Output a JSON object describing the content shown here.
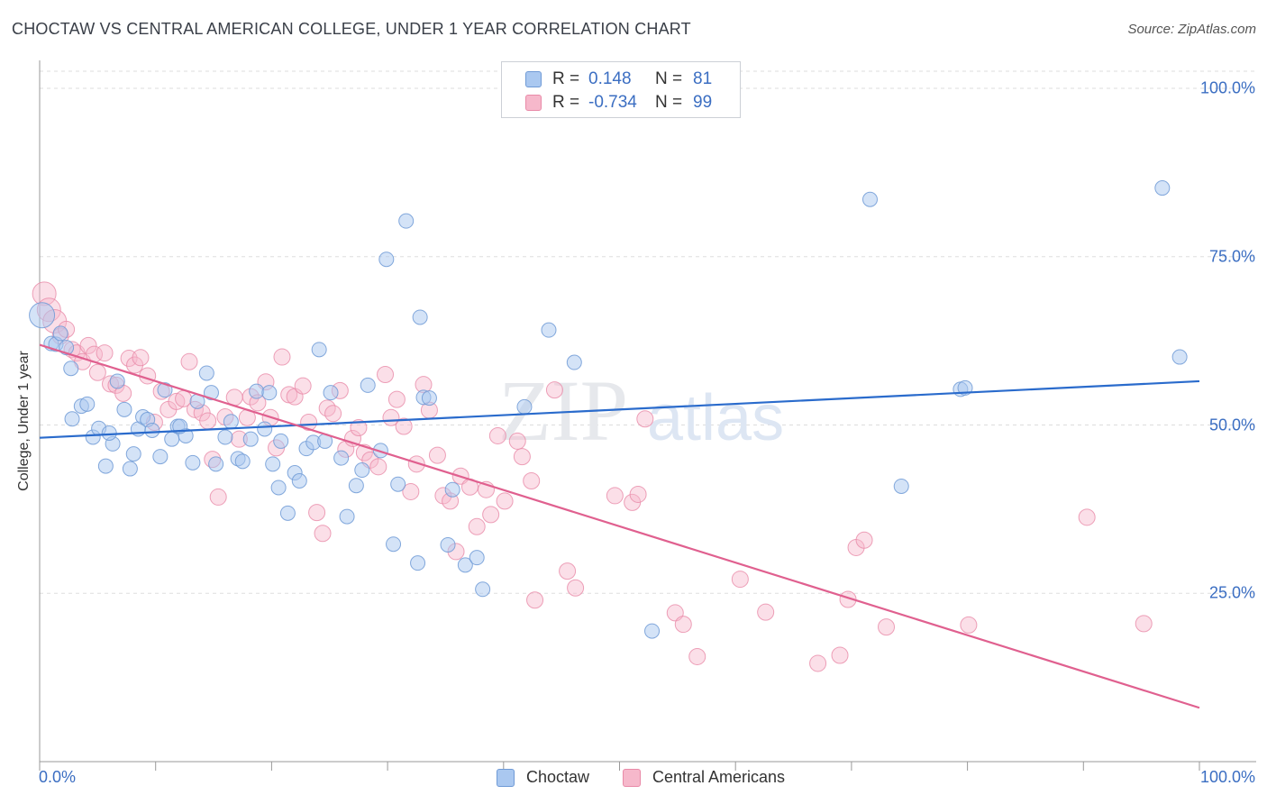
{
  "title": "CHOCTAW VS CENTRAL AMERICAN COLLEGE, UNDER 1 YEAR CORRELATION CHART",
  "source": "Source: ZipAtlas.com",
  "watermark": {
    "zip": "ZIP",
    "atlas": "atlas"
  },
  "legend": {
    "rows": [
      {
        "r_label": "R =",
        "r_value": "0.148",
        "n_label": "N =",
        "n_value": "81"
      },
      {
        "r_label": "R =",
        "r_value": "-0.734",
        "n_label": "N =",
        "n_value": "99"
      }
    ]
  },
  "colors": {
    "choctaw_fill": "#aac8f0",
    "choctaw_stroke": "#6f9ad6",
    "choctaw_line": "#2a6bcc",
    "central_fill": "#f6b8cb",
    "central_stroke": "#e98aa8",
    "central_line": "#e0608f",
    "tick_label": "#3b6ec2",
    "grid": "#dddddd"
  },
  "chart_data": {
    "type": "scatter",
    "title": "CHOCTAW VS CENTRAL AMERICAN COLLEGE, UNDER 1 YEAR CORRELATION CHART",
    "xlabel": "",
    "ylabel": "College, Under 1 year",
    "xlim": [
      0,
      100
    ],
    "ylim": [
      0,
      100
    ],
    "x_tick_labels": [
      "0.0%",
      "100.0%"
    ],
    "y_ticks": [
      25,
      50,
      75,
      100
    ],
    "y_tick_labels": [
      "25.0%",
      "50.0%",
      "75.0%",
      "100.0%"
    ],
    "grid": true,
    "series": [
      {
        "name": "Choctaw",
        "r": 0.148,
        "n": 81,
        "trend": {
          "x": [
            0,
            100
          ],
          "y": [
            48.1,
            56.5
          ]
        },
        "points": [
          [
            0.2,
            66.3
          ],
          [
            1.0,
            62.1
          ],
          [
            1.4,
            62.0
          ],
          [
            1.8,
            63.6
          ],
          [
            2.3,
            61.5
          ],
          [
            2.7,
            58.4
          ],
          [
            2.8,
            50.9
          ],
          [
            3.6,
            52.8
          ],
          [
            4.1,
            53.1
          ],
          [
            4.6,
            48.2
          ],
          [
            5.1,
            49.5
          ],
          [
            5.7,
            43.9
          ],
          [
            6.3,
            47.2
          ],
          [
            6.7,
            56.5
          ],
          [
            7.3,
            52.3
          ],
          [
            7.8,
            43.5
          ],
          [
            8.1,
            45.7
          ],
          [
            8.5,
            49.4
          ],
          [
            8.9,
            51.2
          ],
          [
            9.3,
            50.8
          ],
          [
            9.7,
            49.2
          ],
          [
            10.4,
            45.3
          ],
          [
            10.8,
            55.2
          ],
          [
            11.4,
            47.9
          ],
          [
            11.9,
            49.8
          ],
          [
            12.6,
            48.4
          ],
          [
            13.2,
            44.4
          ],
          [
            13.6,
            53.5
          ],
          [
            14.4,
            57.7
          ],
          [
            14.8,
            54.8
          ],
          [
            15.2,
            44.2
          ],
          [
            16.0,
            48.2
          ],
          [
            16.5,
            50.5
          ],
          [
            17.1,
            45.0
          ],
          [
            17.5,
            44.6
          ],
          [
            18.2,
            47.9
          ],
          [
            18.7,
            55.0
          ],
          [
            19.4,
            49.4
          ],
          [
            19.8,
            54.8
          ],
          [
            20.6,
            40.7
          ],
          [
            20.8,
            47.6
          ],
          [
            21.4,
            36.9
          ],
          [
            22.0,
            42.9
          ],
          [
            22.4,
            41.7
          ],
          [
            23.0,
            46.5
          ],
          [
            23.6,
            47.4
          ],
          [
            24.1,
            61.2
          ],
          [
            24.6,
            47.6
          ],
          [
            25.1,
            54.8
          ],
          [
            26.0,
            45.1
          ],
          [
            26.5,
            36.4
          ],
          [
            27.3,
            41.0
          ],
          [
            27.8,
            43.3
          ],
          [
            28.3,
            55.9
          ],
          [
            29.4,
            46.2
          ],
          [
            29.9,
            74.6
          ],
          [
            30.5,
            32.3
          ],
          [
            30.9,
            41.2
          ],
          [
            31.6,
            80.3
          ],
          [
            32.6,
            29.5
          ],
          [
            32.8,
            66.0
          ],
          [
            33.1,
            54.1
          ],
          [
            33.6,
            54.0
          ],
          [
            35.2,
            32.2
          ],
          [
            35.6,
            40.4
          ],
          [
            36.7,
            29.2
          ],
          [
            37.7,
            30.3
          ],
          [
            38.2,
            25.6
          ],
          [
            41.8,
            52.7
          ],
          [
            43.9,
            64.1
          ],
          [
            46.1,
            59.3
          ],
          [
            52.8,
            19.4
          ],
          [
            71.6,
            83.5
          ],
          [
            74.3,
            40.9
          ],
          [
            79.4,
            55.3
          ],
          [
            79.8,
            55.5
          ],
          [
            96.8,
            85.2
          ],
          [
            98.3,
            60.1
          ],
          [
            20.1,
            44.2
          ],
          [
            12.1,
            49.8
          ],
          [
            6.0,
            48.8
          ]
        ]
      },
      {
        "name": "Central Americans",
        "r": -0.734,
        "n": 99,
        "trend": {
          "x": [
            0,
            100
          ],
          "y": [
            61.9,
            8.0
          ]
        },
        "points": [
          [
            0.4,
            69.5
          ],
          [
            0.8,
            67.1
          ],
          [
            1.3,
            65.4
          ],
          [
            1.8,
            63.2
          ],
          [
            2.3,
            64.2
          ],
          [
            2.8,
            61.2
          ],
          [
            3.2,
            60.7
          ],
          [
            3.7,
            59.4
          ],
          [
            4.2,
            61.8
          ],
          [
            4.7,
            60.5
          ],
          [
            5.0,
            57.8
          ],
          [
            5.6,
            60.7
          ],
          [
            6.1,
            56.1
          ],
          [
            6.6,
            55.9
          ],
          [
            7.2,
            54.7
          ],
          [
            7.7,
            59.9
          ],
          [
            8.2,
            58.9
          ],
          [
            8.7,
            60.0
          ],
          [
            9.3,
            57.3
          ],
          [
            9.9,
            50.4
          ],
          [
            10.5,
            55.0
          ],
          [
            11.1,
            52.3
          ],
          [
            11.8,
            53.5
          ],
          [
            12.4,
            53.9
          ],
          [
            12.9,
            59.4
          ],
          [
            13.4,
            52.3
          ],
          [
            14.0,
            51.8
          ],
          [
            14.5,
            50.6
          ],
          [
            14.9,
            44.9
          ],
          [
            15.4,
            39.3
          ],
          [
            16.0,
            51.2
          ],
          [
            16.8,
            54.1
          ],
          [
            17.2,
            47.9
          ],
          [
            17.9,
            51.1
          ],
          [
            18.2,
            54.2
          ],
          [
            18.8,
            53.3
          ],
          [
            19.5,
            56.4
          ],
          [
            19.9,
            51.1
          ],
          [
            20.4,
            46.6
          ],
          [
            20.9,
            60.1
          ],
          [
            21.5,
            54.5
          ],
          [
            22.0,
            54.2
          ],
          [
            22.7,
            55.8
          ],
          [
            23.2,
            50.4
          ],
          [
            23.9,
            37.0
          ],
          [
            24.4,
            33.9
          ],
          [
            24.8,
            52.5
          ],
          [
            25.3,
            51.7
          ],
          [
            25.9,
            55.1
          ],
          [
            26.4,
            46.4
          ],
          [
            27.0,
            48.0
          ],
          [
            27.5,
            49.6
          ],
          [
            28.0,
            45.9
          ],
          [
            28.5,
            44.8
          ],
          [
            29.2,
            43.8
          ],
          [
            29.8,
            57.5
          ],
          [
            30.3,
            51.1
          ],
          [
            30.8,
            53.8
          ],
          [
            31.4,
            49.8
          ],
          [
            32.0,
            40.1
          ],
          [
            32.5,
            44.2
          ],
          [
            33.1,
            56.0
          ],
          [
            33.6,
            52.2
          ],
          [
            34.3,
            45.5
          ],
          [
            34.8,
            39.5
          ],
          [
            35.4,
            38.7
          ],
          [
            35.9,
            31.2
          ],
          [
            36.3,
            42.4
          ],
          [
            37.1,
            40.8
          ],
          [
            37.7,
            34.9
          ],
          [
            38.5,
            40.4
          ],
          [
            38.9,
            36.7
          ],
          [
            39.5,
            48.4
          ],
          [
            40.1,
            38.7
          ],
          [
            41.2,
            47.6
          ],
          [
            41.6,
            45.3
          ],
          [
            42.4,
            41.7
          ],
          [
            42.7,
            24.0
          ],
          [
            44.4,
            55.2
          ],
          [
            45.5,
            28.3
          ],
          [
            46.2,
            25.8
          ],
          [
            49.6,
            39.5
          ],
          [
            51.1,
            38.5
          ],
          [
            51.6,
            39.7
          ],
          [
            52.2,
            50.9
          ],
          [
            54.8,
            22.1
          ],
          [
            55.5,
            20.4
          ],
          [
            56.7,
            15.6
          ],
          [
            60.4,
            27.1
          ],
          [
            62.6,
            22.2
          ],
          [
            67.1,
            14.6
          ],
          [
            69.0,
            15.8
          ],
          [
            69.7,
            24.1
          ],
          [
            70.4,
            31.8
          ],
          [
            71.1,
            32.9
          ],
          [
            73.0,
            20.0
          ],
          [
            80.1,
            20.3
          ],
          [
            90.3,
            36.3
          ],
          [
            95.2,
            20.5
          ]
        ]
      }
    ]
  }
}
